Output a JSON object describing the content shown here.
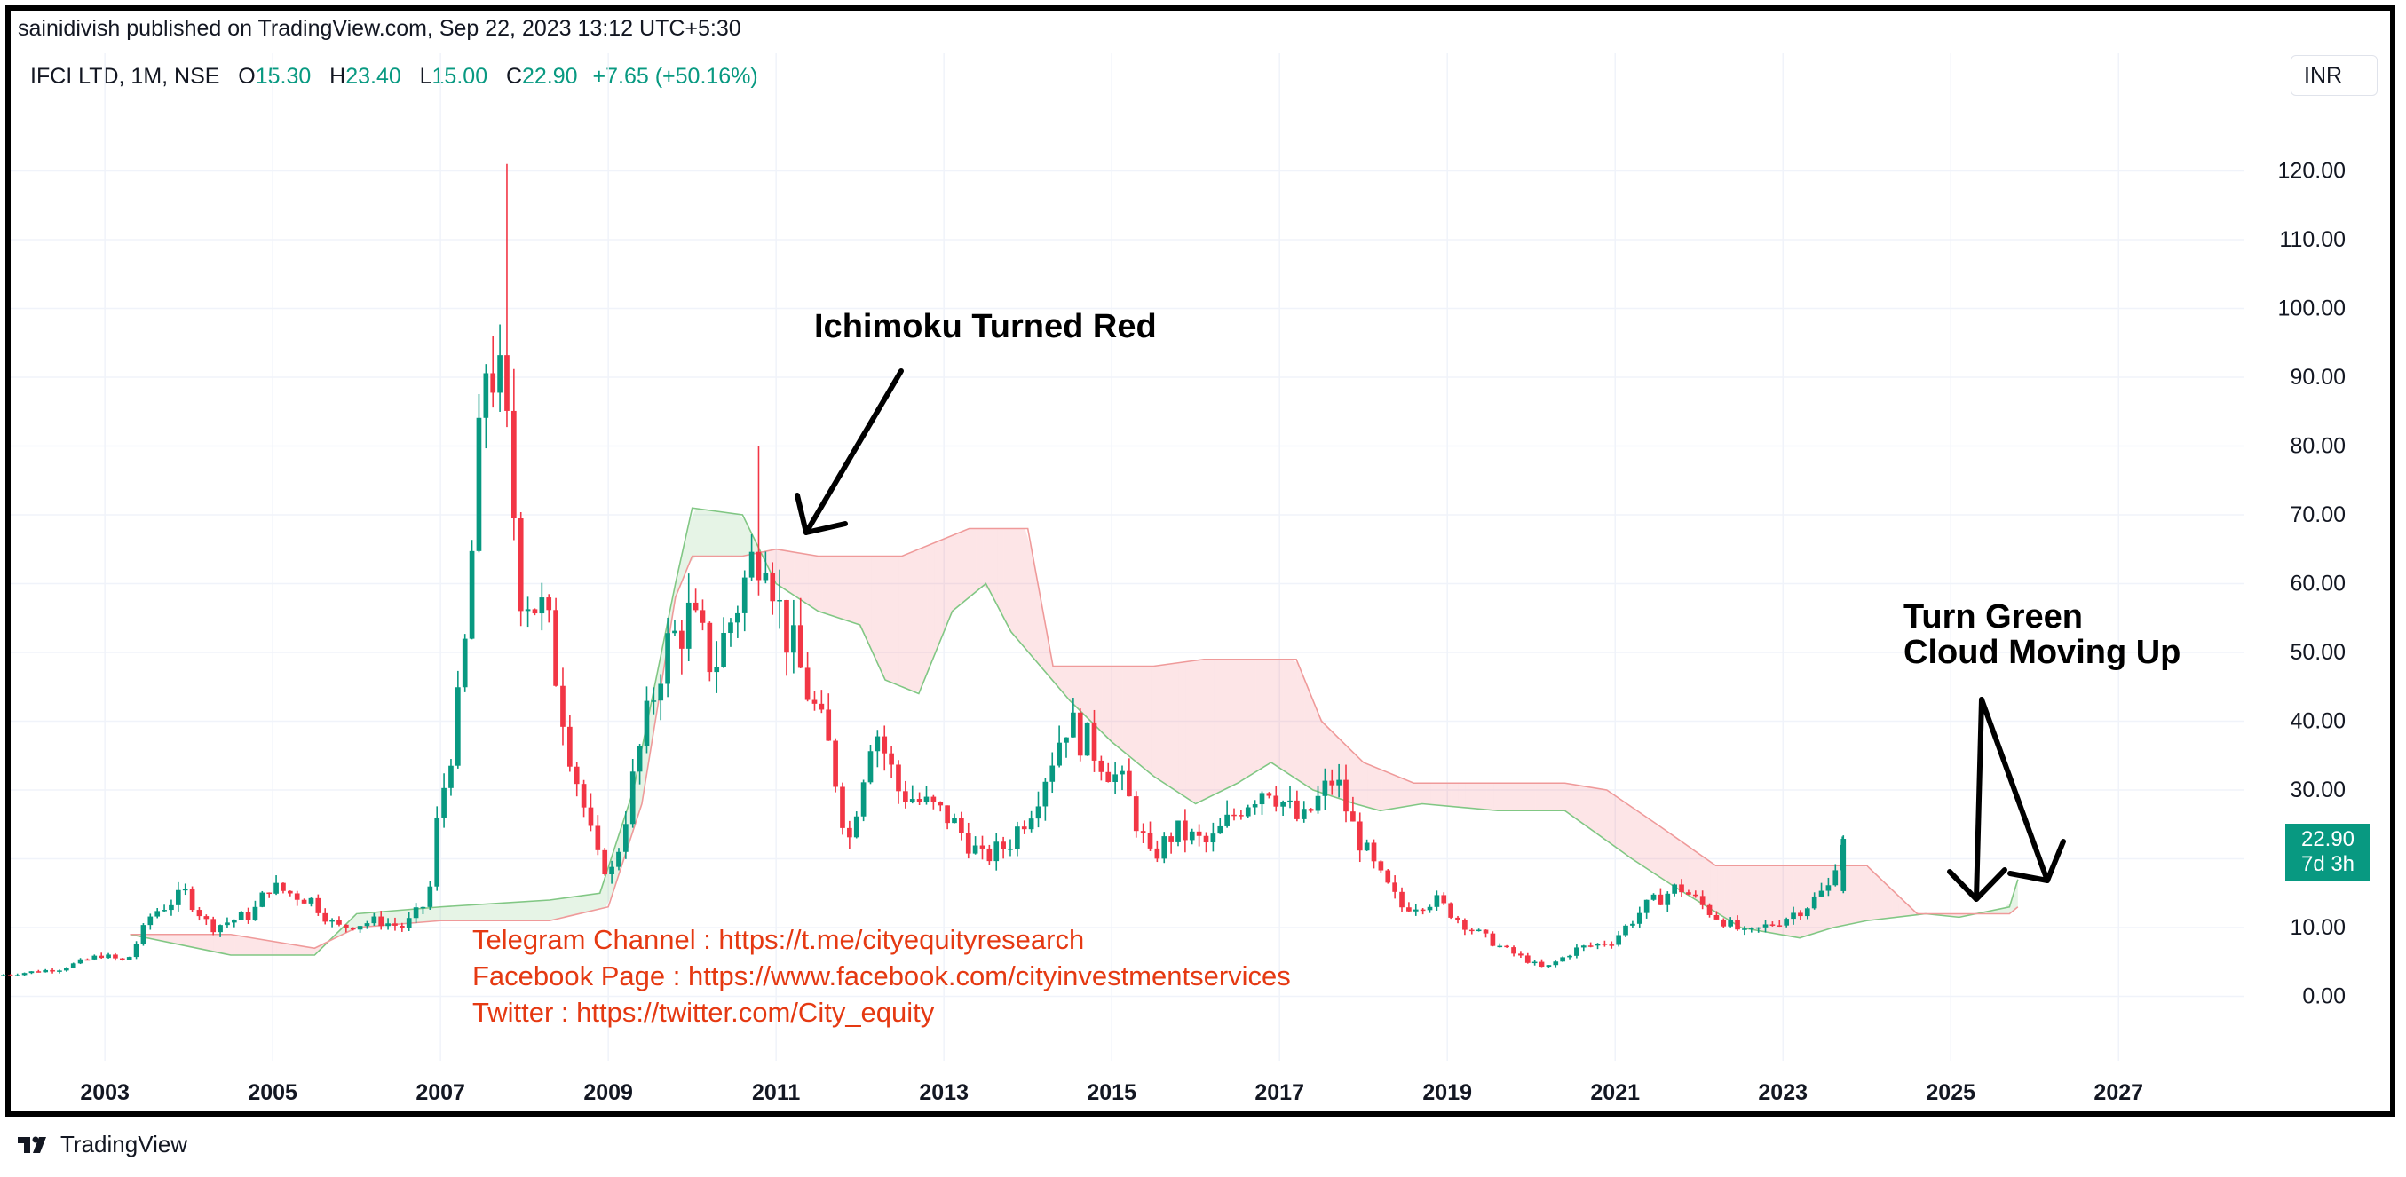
{
  "header": {
    "published": "sainidivish published on TradingView.com, Sep 22, 2023 13:12 UTC+5:30"
  },
  "legend": {
    "symbol": "IFCI LTD, 1M, NSE",
    "o_label": "O",
    "o_value": "15.30",
    "h_label": "H",
    "h_value": "23.40",
    "l_label": "L",
    "l_value": "15.00",
    "c_label": "C",
    "c_value": "22.90",
    "change": "+7.65 (+50.16%)"
  },
  "currency_button": "INR",
  "price_tag": {
    "price": "22.90",
    "countdown": "7d 3h"
  },
  "annotations": {
    "ichimoku": "Ichimoku Turned Red",
    "turn_green_1": "Turn Green",
    "turn_green_2": "Cloud Moving Up",
    "telegram": "Telegram Channel : https://t.me/cityequityresearch",
    "facebook": "Facebook Page : https://www.facebook.com/cityinvestmentservices",
    "twitter": "Twitter : https://twitter.com/City_equity"
  },
  "footer": {
    "brand": "TradingView"
  },
  "colors": {
    "up": "#089981",
    "down": "#f23645",
    "cloud_green": "#c8e6c9",
    "cloud_red": "#ffcdd2",
    "annotation_red": "#e53912"
  },
  "chart_data": {
    "type": "candlestick",
    "title": "IFCI LTD, 1M, NSE",
    "xlabel": "",
    "ylabel": "",
    "x_ticks": [
      "2003",
      "2005",
      "2007",
      "2009",
      "2011",
      "2013",
      "2015",
      "2017",
      "2019",
      "2021",
      "2023",
      "2025",
      "2027"
    ],
    "y_ticks": [
      "0.00",
      "10.00",
      "20.00",
      "30.00",
      "40.00",
      "50.00",
      "60.00",
      "70.00",
      "80.00",
      "90.00",
      "100.00",
      "110.00",
      "120.00"
    ],
    "xlim": [
      2001.75,
      2028.5
    ],
    "ylim": [
      -10,
      130
    ],
    "grid": true,
    "close_path": [
      [
        2001.75,
        3
      ],
      [
        2002.5,
        4
      ],
      [
        2003.0,
        6
      ],
      [
        2003.3,
        5
      ],
      [
        2003.6,
        12
      ],
      [
        2004.0,
        15
      ],
      [
        2004.3,
        10
      ],
      [
        2004.8,
        12
      ],
      [
        2005.0,
        16
      ],
      [
        2005.5,
        14
      ],
      [
        2005.8,
        10
      ],
      [
        2006.3,
        11
      ],
      [
        2006.6,
        10
      ],
      [
        2006.9,
        14
      ],
      [
        2007.0,
        25
      ],
      [
        2007.3,
        45
      ],
      [
        2007.6,
        95
      ],
      [
        2007.8,
        85
      ],
      [
        2008.0,
        60
      ],
      [
        2008.3,
        55
      ],
      [
        2008.6,
        35
      ],
      [
        2008.9,
        20
      ],
      [
        2009.1,
        18
      ],
      [
        2009.4,
        35
      ],
      [
        2009.7,
        50
      ],
      [
        2010.0,
        55
      ],
      [
        2010.3,
        48
      ],
      [
        2010.6,
        58
      ],
      [
        2010.9,
        68
      ],
      [
        2011.1,
        55
      ],
      [
        2011.4,
        45
      ],
      [
        2011.7,
        35
      ],
      [
        2011.9,
        22
      ],
      [
        2012.2,
        40
      ],
      [
        2012.5,
        30
      ],
      [
        2012.8,
        28
      ],
      [
        2013.1,
        26
      ],
      [
        2013.5,
        20
      ],
      [
        2013.8,
        22
      ],
      [
        2014.1,
        28
      ],
      [
        2014.5,
        40
      ],
      [
        2014.9,
        35
      ],
      [
        2015.2,
        30
      ],
      [
        2015.5,
        20
      ],
      [
        2015.8,
        24
      ],
      [
        2016.2,
        22
      ],
      [
        2016.6,
        28
      ],
      [
        2016.9,
        31
      ],
      [
        2017.3,
        25
      ],
      [
        2017.7,
        32
      ],
      [
        2017.9,
        25
      ],
      [
        2018.2,
        18
      ],
      [
        2018.5,
        13
      ],
      [
        2018.9,
        14
      ],
      [
        2019.3,
        10
      ],
      [
        2019.7,
        7
      ],
      [
        2020.2,
        4
      ],
      [
        2020.6,
        7
      ],
      [
        2021.0,
        8
      ],
      [
        2021.4,
        13
      ],
      [
        2021.8,
        16
      ],
      [
        2022.2,
        12
      ],
      [
        2022.6,
        9
      ],
      [
        2023.0,
        11
      ],
      [
        2023.3,
        13
      ],
      [
        2023.6,
        16
      ],
      [
        2023.72,
        22.9
      ]
    ],
    "last_bar": {
      "open": 15.3,
      "high": 23.4,
      "low": 15.0,
      "close": 22.9,
      "change": 7.65,
      "change_pct": 50.16
    },
    "price_extremes": {
      "high_2007": 121,
      "high_2010": 80
    },
    "ichimoku_cloud": {
      "span_a": [
        [
          2003.3,
          9
        ],
        [
          2004.5,
          6
        ],
        [
          2005.5,
          6
        ],
        [
          2006.0,
          12
        ],
        [
          2007.0,
          13
        ],
        [
          2008.3,
          14
        ],
        [
          2008.9,
          15
        ],
        [
          2009.3,
          30
        ],
        [
          2009.8,
          60
        ],
        [
          2010.0,
          71
        ],
        [
          2010.6,
          70
        ],
        [
          2011.0,
          60
        ],
        [
          2011.5,
          56
        ],
        [
          2012.0,
          54
        ],
        [
          2012.3,
          46
        ],
        [
          2012.7,
          44
        ],
        [
          2013.1,
          56
        ],
        [
          2013.5,
          60
        ],
        [
          2013.8,
          53
        ],
        [
          2014.5,
          43
        ],
        [
          2015.0,
          37
        ],
        [
          2015.5,
          32
        ],
        [
          2016.0,
          28
        ],
        [
          2016.5,
          31
        ],
        [
          2016.9,
          34
        ],
        [
          2017.4,
          30
        ],
        [
          2017.9,
          28
        ],
        [
          2018.2,
          27
        ],
        [
          2018.7,
          28
        ],
        [
          2019.6,
          27
        ],
        [
          2020.4,
          27
        ],
        [
          2021.2,
          20
        ],
        [
          2021.7,
          16
        ],
        [
          2022.5,
          10
        ],
        [
          2023.2,
          8.5
        ],
        [
          2023.6,
          10
        ],
        [
          2024.0,
          11
        ],
        [
          2024.7,
          12
        ],
        [
          2025.1,
          11.5
        ],
        [
          2025.7,
          13
        ],
        [
          2025.8,
          17
        ]
      ],
      "span_b": [
        [
          2003.3,
          9
        ],
        [
          2004.5,
          9
        ],
        [
          2005.5,
          7
        ],
        [
          2006.0,
          10
        ],
        [
          2007.0,
          11
        ],
        [
          2008.3,
          11
        ],
        [
          2009.0,
          13
        ],
        [
          2009.4,
          28
        ],
        [
          2009.8,
          58
        ],
        [
          2010.0,
          64
        ],
        [
          2010.6,
          64
        ],
        [
          2011.0,
          65
        ],
        [
          2011.5,
          64
        ],
        [
          2012.0,
          64
        ],
        [
          2012.5,
          64
        ],
        [
          2013.3,
          68
        ],
        [
          2014.0,
          68
        ],
        [
          2014.3,
          48
        ],
        [
          2015.0,
          48
        ],
        [
          2015.5,
          48
        ],
        [
          2016.1,
          49
        ],
        [
          2016.8,
          49
        ],
        [
          2017.2,
          49
        ],
        [
          2017.5,
          40
        ],
        [
          2018.0,
          34
        ],
        [
          2018.6,
          31
        ],
        [
          2019.5,
          31
        ],
        [
          2020.4,
          31
        ],
        [
          2020.9,
          30
        ],
        [
          2021.5,
          25
        ],
        [
          2022.2,
          19
        ],
        [
          2022.8,
          19
        ],
        [
          2023.5,
          19
        ],
        [
          2024.0,
          19
        ],
        [
          2024.6,
          12
        ],
        [
          2025.7,
          12
        ],
        [
          2025.8,
          13
        ]
      ]
    }
  }
}
